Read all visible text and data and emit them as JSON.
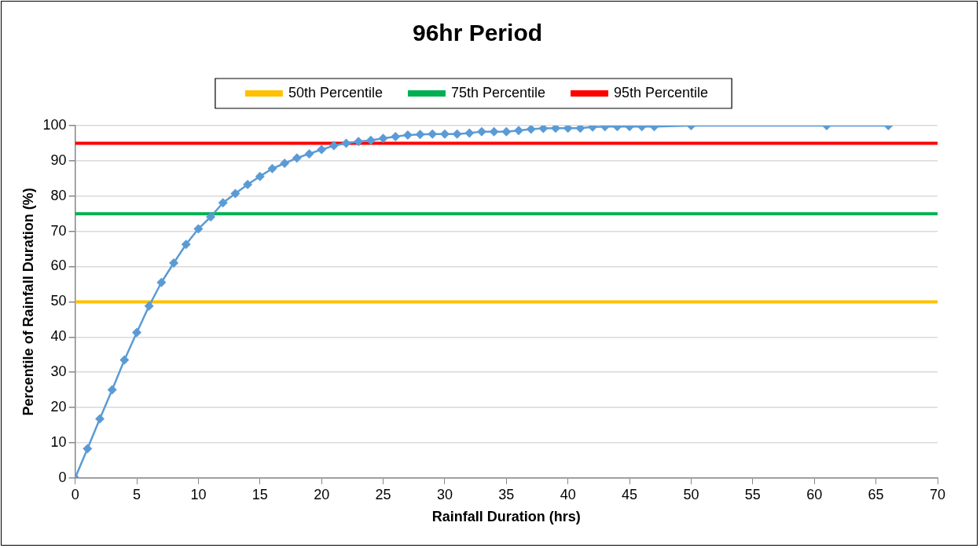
{
  "chart_data": {
    "type": "line",
    "title": "96hr Period",
    "xlabel": "Rainfall Duration (hrs)",
    "ylabel": "Percentile of Rainfall Duration (%)",
    "x": [
      0,
      1,
      2,
      3,
      4,
      5,
      6,
      7,
      8,
      9,
      10,
      11,
      12,
      13,
      14,
      15,
      16,
      17,
      18,
      19,
      20,
      21,
      22,
      23,
      24,
      25,
      26,
      27,
      28,
      29,
      30,
      31,
      32,
      33,
      34,
      35,
      36,
      37,
      38,
      39,
      40,
      41,
      42,
      43,
      44,
      45,
      46,
      47,
      50,
      61,
      66
    ],
    "series": [
      {
        "color": "#5b9bd5",
        "values": [
          0,
          8.3,
          16.8,
          25,
          33.5,
          41.3,
          48.8,
          55.5,
          61,
          66.3,
          70.7,
          74.1,
          78.1,
          80.7,
          83.3,
          85.6,
          87.8,
          89.3,
          90.8,
          92,
          93.2,
          94.3,
          95,
          95.5,
          95.8,
          96.4,
          96.9,
          97.3,
          97.5,
          97.6,
          97.6,
          97.6,
          97.9,
          98.3,
          98.3,
          98.3,
          98.6,
          99,
          99.2,
          99.3,
          99.3,
          99.3,
          99.6,
          99.7,
          99.7,
          99.7,
          99.7,
          99.7,
          100,
          100,
          100
        ]
      }
    ],
    "ref_lines": [
      {
        "axis": "y",
        "value": 50,
        "label": "50th Percentile",
        "color": "#ffc000"
      },
      {
        "axis": "y",
        "value": 75,
        "label": "75th Percentile",
        "color": "#00b050"
      },
      {
        "axis": "y",
        "value": 95,
        "label": "95th Percentile",
        "color": "#ff0000"
      }
    ],
    "xlim": [
      0,
      70
    ],
    "xticks": [
      0,
      5,
      10,
      15,
      20,
      25,
      30,
      35,
      40,
      45,
      50,
      55,
      60,
      65,
      70
    ],
    "ylim": [
      0,
      100
    ],
    "yticks": [
      0,
      10,
      20,
      30,
      40,
      50,
      60,
      70,
      80,
      90,
      100
    ],
    "grid": "y",
    "legend": "top",
    "marker": "diamond",
    "line_style": "solid"
  }
}
